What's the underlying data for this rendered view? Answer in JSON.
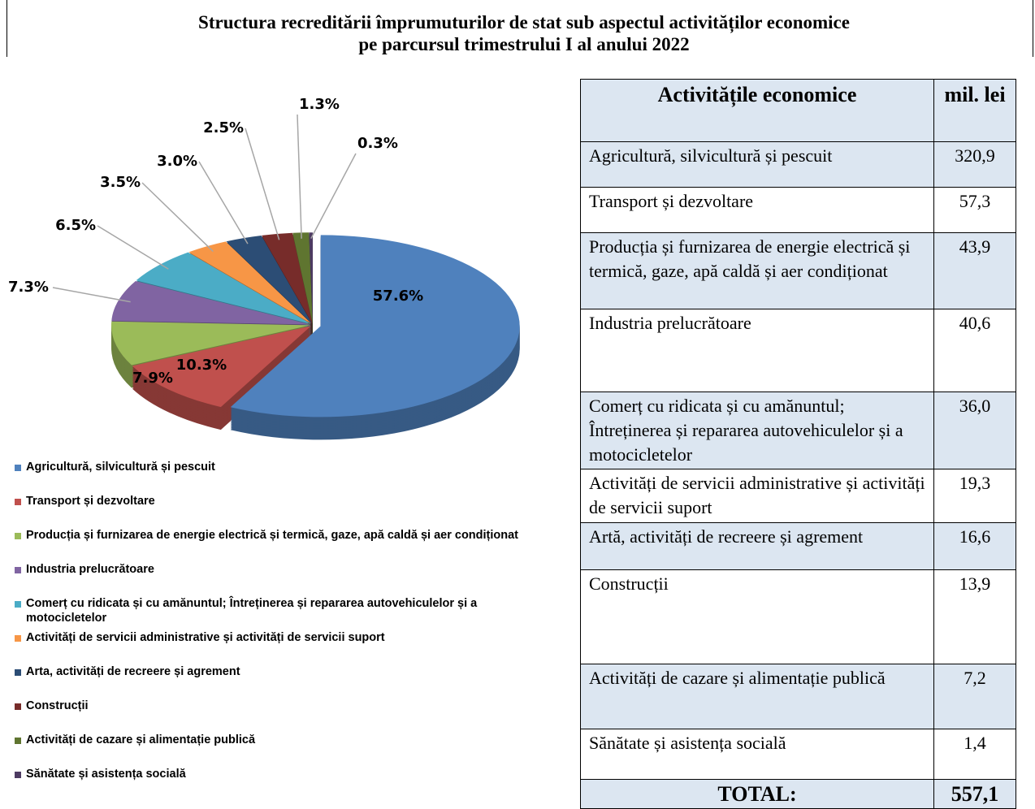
{
  "header": {
    "title_lines": [
      "Structura recreditării împrumuturilor de stat sub aspectul activităților economice",
      "pe parcursul trimestrului I al anului 2022"
    ]
  },
  "chart_data": {
    "type": "pie",
    "categories": [
      "Agricultură, silvicultură și pescuit",
      "Transport și dezvoltare",
      "Producția și furnizarea de energie electrică și termică, gaze, apă caldă și aer condiționat",
      "Industria prelucrătoare",
      "Comerț cu ridicata și cu amănuntul; Întreținerea și repararea autovehiculelor și a motocicletelor",
      "Activități de servicii administrative și activități de servicii suport",
      "Arta, activități de recreere și agrement",
      "Construcții",
      "Activități de cazare și alimentație publică",
      "Sănătate și asistența socială"
    ],
    "values": [
      57.6,
      10.3,
      7.9,
      7.3,
      6.5,
      3.5,
      3.0,
      2.5,
      1.3,
      0.3
    ],
    "value_labels": [
      "57.6%",
      "10.3%",
      "7.9%",
      "7.3%",
      "6.5%",
      "3.5%",
      "3.0%",
      "2.5%",
      "1.3%",
      "0.3%"
    ],
    "colors": [
      "#4f81bd",
      "#c0504d",
      "#9bbb59",
      "#8064a2",
      "#4bacc6",
      "#f79646",
      "#2c4d75",
      "#772c2a",
      "#5f7530",
      "#4d3b62"
    ],
    "legend": "bottom"
  },
  "table": {
    "header": [
      "Activitățile economice",
      "mil. lei"
    ],
    "rows": [
      [
        "Agricultură, silvicultură și pescuit",
        "320,9"
      ],
      [
        "Transport și dezvoltare",
        "57,3"
      ],
      [
        "Producția și furnizarea de energie electrică și termică, gaze, apă caldă și aer condiționat",
        "43,9"
      ],
      [
        "Industria prelucrătoare",
        "40,6"
      ],
      [
        "Comerț cu ridicata și cu amănuntul; Întreținerea și repararea autovehiculelor și a motocicletelor",
        "36,0"
      ],
      [
        "Activități de servicii administrative și activități de servicii suport",
        "19,3"
      ],
      [
        "Artă, activități de recreere și agrement",
        "16,6"
      ],
      [
        "Construcții",
        "13,9"
      ],
      [
        "Activități de cazare și alimentație publică",
        "7,2"
      ],
      [
        "Sănătate și asistența socială",
        "1,4"
      ]
    ],
    "total": [
      "TOTAL:",
      "557,1"
    ]
  }
}
